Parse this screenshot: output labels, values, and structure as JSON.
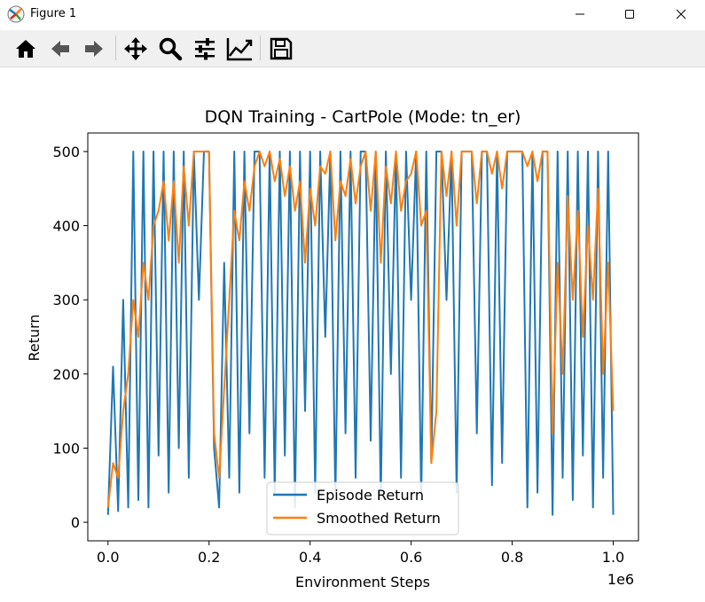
{
  "window": {
    "title": "Figure 1",
    "controls": [
      "minimize-icon",
      "maximize-icon",
      "close-icon"
    ]
  },
  "toolbar": {
    "buttons": [
      "home-icon",
      "back-arrow-icon",
      "forward-arrow-icon",
      "pan-move-icon",
      "zoom-magnifier-icon",
      "configure-subplots-icon",
      "edit-axis-icon",
      "save-floppy-icon"
    ]
  },
  "colors": {
    "episode_return": "#1f77b4",
    "smoothed_return": "#ff7f0e"
  },
  "chart_data": {
    "type": "line",
    "title": "DQN Training - CartPole (Mode: tn_er)",
    "xlabel": "Environment Steps",
    "ylabel": "Return",
    "x_offset_label": "1e6",
    "xlim": [
      -0.04,
      1.05
    ],
    "ylim": [
      -25,
      525
    ],
    "xticks": [
      0.0,
      0.2,
      0.4,
      0.6,
      0.8,
      1.0
    ],
    "xtick_labels": [
      "0.0",
      "0.2",
      "0.4",
      "0.6",
      "0.8",
      "1.0"
    ],
    "yticks": [
      0,
      100,
      200,
      300,
      400,
      500
    ],
    "ytick_labels": [
      "0",
      "100",
      "200",
      "300",
      "400",
      "500"
    ],
    "grid": false,
    "legend": "lower center",
    "series": [
      {
        "name": "Episode Return",
        "x": [
          0.0,
          0.01,
          0.02,
          0.03,
          0.04,
          0.05,
          0.06,
          0.07,
          0.08,
          0.09,
          0.1,
          0.11,
          0.12,
          0.13,
          0.14,
          0.15,
          0.16,
          0.17,
          0.18,
          0.19,
          0.2,
          0.21,
          0.22,
          0.23,
          0.24,
          0.25,
          0.26,
          0.27,
          0.28,
          0.29,
          0.3,
          0.31,
          0.32,
          0.33,
          0.34,
          0.35,
          0.36,
          0.37,
          0.38,
          0.39,
          0.4,
          0.41,
          0.42,
          0.43,
          0.44,
          0.45,
          0.46,
          0.47,
          0.48,
          0.49,
          0.5,
          0.51,
          0.52,
          0.53,
          0.54,
          0.55,
          0.56,
          0.57,
          0.58,
          0.59,
          0.6,
          0.61,
          0.62,
          0.63,
          0.64,
          0.65,
          0.66,
          0.67,
          0.68,
          0.69,
          0.7,
          0.71,
          0.72,
          0.73,
          0.74,
          0.75,
          0.76,
          0.77,
          0.78,
          0.79,
          0.8,
          0.81,
          0.82,
          0.83,
          0.84,
          0.85,
          0.86,
          0.87,
          0.88,
          0.89,
          0.9,
          0.91,
          0.92,
          0.93,
          0.94,
          0.95,
          0.96,
          0.97,
          0.98,
          0.99,
          1.0
        ],
        "values": [
          10,
          210,
          15,
          300,
          20,
          500,
          30,
          500,
          20,
          500,
          90,
          500,
          40,
          500,
          100,
          500,
          60,
          500,
          300,
          500,
          500,
          100,
          20,
          350,
          60,
          500,
          40,
          500,
          120,
          500,
          500,
          60,
          500,
          40,
          500,
          90,
          500,
          20,
          500,
          150,
          500,
          40,
          500,
          250,
          500,
          30,
          500,
          120,
          500,
          60,
          500,
          500,
          110,
          500,
          30,
          500,
          200,
          500,
          60,
          500,
          300,
          500,
          30,
          500,
          80,
          500,
          500,
          300,
          500,
          40,
          500,
          500,
          500,
          120,
          500,
          500,
          50,
          500,
          80,
          500,
          500,
          500,
          500,
          20,
          500,
          40,
          500,
          500,
          10,
          500,
          60,
          500,
          30,
          500,
          90,
          500,
          20,
          500,
          60,
          500,
          10
        ]
      },
      {
        "name": "Smoothed Return",
        "x": [
          0.0,
          0.01,
          0.02,
          0.03,
          0.04,
          0.05,
          0.06,
          0.07,
          0.08,
          0.09,
          0.1,
          0.11,
          0.12,
          0.13,
          0.14,
          0.15,
          0.16,
          0.17,
          0.18,
          0.19,
          0.2,
          0.21,
          0.22,
          0.23,
          0.24,
          0.25,
          0.26,
          0.27,
          0.28,
          0.29,
          0.3,
          0.31,
          0.32,
          0.33,
          0.34,
          0.35,
          0.36,
          0.37,
          0.38,
          0.39,
          0.4,
          0.41,
          0.42,
          0.43,
          0.44,
          0.45,
          0.46,
          0.47,
          0.48,
          0.49,
          0.5,
          0.51,
          0.52,
          0.53,
          0.54,
          0.55,
          0.56,
          0.57,
          0.58,
          0.59,
          0.6,
          0.61,
          0.62,
          0.63,
          0.64,
          0.65,
          0.66,
          0.67,
          0.68,
          0.69,
          0.7,
          0.71,
          0.72,
          0.73,
          0.74,
          0.75,
          0.76,
          0.77,
          0.78,
          0.79,
          0.8,
          0.81,
          0.82,
          0.83,
          0.84,
          0.85,
          0.86,
          0.87,
          0.88,
          0.89,
          0.9,
          0.91,
          0.92,
          0.93,
          0.94,
          0.95,
          0.96,
          0.97,
          0.98,
          0.99,
          1.0
        ],
        "values": [
          20,
          80,
          60,
          150,
          200,
          300,
          250,
          350,
          300,
          400,
          420,
          460,
          380,
          460,
          350,
          480,
          400,
          500,
          500,
          500,
          500,
          120,
          60,
          180,
          300,
          420,
          380,
          460,
          420,
          480,
          500,
          480,
          500,
          460,
          490,
          440,
          480,
          420,
          460,
          350,
          450,
          400,
          480,
          470,
          500,
          380,
          460,
          440,
          490,
          430,
          480,
          500,
          420,
          500,
          350,
          480,
          430,
          500,
          420,
          460,
          470,
          500,
          400,
          420,
          80,
          150,
          500,
          440,
          500,
          400,
          500,
          500,
          500,
          430,
          500,
          500,
          470,
          500,
          450,
          500,
          500,
          500,
          500,
          480,
          500,
          460,
          500,
          500,
          120,
          350,
          200,
          440,
          300,
          420,
          250,
          400,
          300,
          450,
          200,
          350,
          150
        ]
      }
    ]
  }
}
